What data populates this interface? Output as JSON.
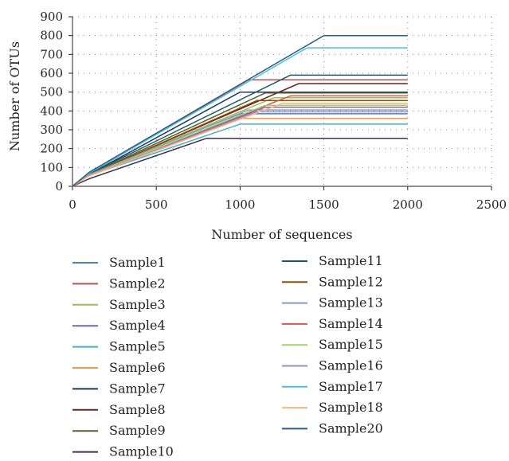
{
  "chart_data": {
    "type": "line",
    "title": "",
    "xlabel": "Number of sequences",
    "ylabel": "Number of OTUs",
    "xlim": [
      0,
      2500
    ],
    "ylim": [
      0,
      900
    ],
    "xticks": [
      0,
      500,
      1000,
      1500,
      2000,
      2500
    ],
    "yticks": [
      0,
      100,
      200,
      300,
      400,
      500,
      600,
      700,
      800,
      900
    ],
    "grid": true,
    "legend": "bottom",
    "series": [
      {
        "name": "Sample1",
        "color": "#4f81bd",
        "x": [
          0,
          100,
          1000,
          2000
        ],
        "y": [
          0,
          72,
          385,
          385
        ]
      },
      {
        "name": "Sample2",
        "color": "#c0504d",
        "x": [
          0,
          100,
          1050,
          2000
        ],
        "y": [
          0,
          68,
          565,
          565
        ]
      },
      {
        "name": "Sample3",
        "color": "#9bbb59",
        "x": [
          0,
          100,
          1200,
          2000
        ],
        "y": [
          0,
          62,
          470,
          470
        ]
      },
      {
        "name": "Sample4",
        "color": "#8064a2",
        "x": [
          0,
          100,
          1150,
          2000
        ],
        "y": [
          0,
          60,
          420,
          420
        ]
      },
      {
        "name": "Sample5",
        "color": "#4bacc6",
        "x": [
          0,
          100,
          1000,
          2000
        ],
        "y": [
          0,
          58,
          330,
          330
        ]
      },
      {
        "name": "Sample6",
        "color": "#f79646",
        "x": [
          0,
          100,
          1000,
          2000
        ],
        "y": [
          0,
          56,
          360,
          360
        ]
      },
      {
        "name": "Sample7",
        "color": "#1f3864",
        "x": [
          0,
          100,
          1000,
          2000
        ],
        "y": [
          0,
          64,
          500,
          500
        ]
      },
      {
        "name": "Sample8",
        "color": "#632523",
        "x": [
          0,
          100,
          1350,
          2000
        ],
        "y": [
          0,
          62,
          545,
          545
        ]
      },
      {
        "name": "Sample9",
        "color": "#4f6228",
        "x": [
          0,
          100,
          1150,
          2000
        ],
        "y": [
          0,
          63,
          495,
          495
        ]
      },
      {
        "name": "Sample10",
        "color": "#3f3151",
        "x": [
          0,
          100,
          800,
          2000
        ],
        "y": [
          0,
          40,
          255,
          255
        ]
      },
      {
        "name": "Sample11",
        "color": "#205867",
        "x": [
          0,
          100,
          1300,
          2000
        ],
        "y": [
          0,
          66,
          590,
          590
        ]
      },
      {
        "name": "Sample12",
        "color": "#984807",
        "x": [
          0,
          100,
          1100,
          2000
        ],
        "y": [
          0,
          60,
          455,
          455
        ]
      },
      {
        "name": "Sample13",
        "color": "#7f9fc9",
        "x": [
          0,
          100,
          1050,
          2000
        ],
        "y": [
          0,
          62,
          405,
          405
        ]
      },
      {
        "name": "Sample14",
        "color": "#d9534f",
        "x": [
          0,
          100,
          1300,
          2000
        ],
        "y": [
          0,
          60,
          480,
          480
        ]
      },
      {
        "name": "Sample15",
        "color": "#a9d06a",
        "x": [
          0,
          100,
          1150,
          2000
        ],
        "y": [
          0,
          59,
          430,
          430
        ]
      },
      {
        "name": "Sample16",
        "color": "#a48bc0",
        "x": [
          0,
          100,
          1100,
          2000
        ],
        "y": [
          0,
          58,
          395,
          395
        ]
      },
      {
        "name": "Sample17",
        "color": "#4fc1d6",
        "x": [
          0,
          100,
          1400,
          2000
        ],
        "y": [
          0,
          70,
          735,
          735
        ]
      },
      {
        "name": "Sample18",
        "color": "#fab27a",
        "x": [
          0,
          100,
          1250,
          2000
        ],
        "y": [
          0,
          55,
          440,
          440
        ]
      },
      {
        "name": "Sample20",
        "color": "#2e5c8a",
        "x": [
          0,
          100,
          1500,
          2000
        ],
        "y": [
          0,
          75,
          800,
          800
        ]
      }
    ]
  }
}
